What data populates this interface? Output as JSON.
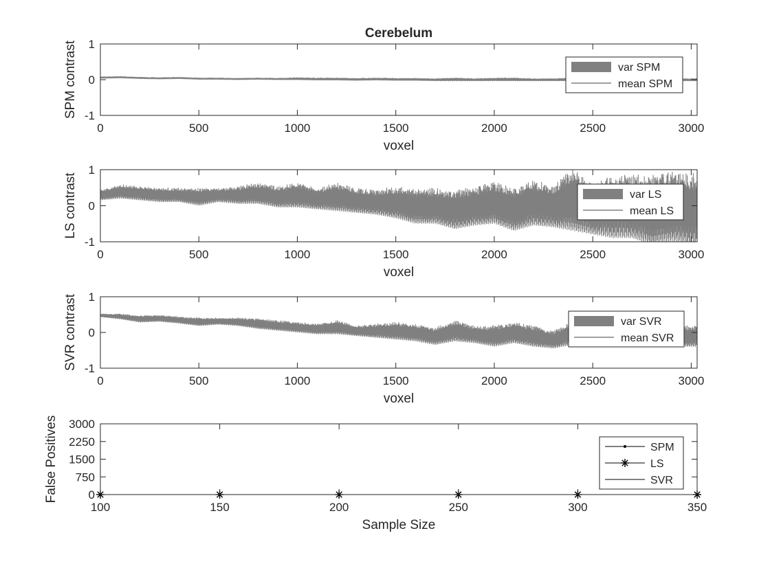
{
  "figure": {
    "title": "Cerebelum",
    "background": "#ffffff",
    "axis_color": "#262626",
    "line_color": "#808080"
  },
  "chart_data": [
    {
      "type": "area",
      "title": "Cerebelum",
      "xlabel": "voxel",
      "ylabel": "SPM contrast",
      "xlim": [
        0,
        3030
      ],
      "ylim": [
        -1,
        1
      ],
      "xticks": [
        0,
        500,
        1000,
        1500,
        2000,
        2500,
        3000
      ],
      "yticks": [
        -1,
        0,
        1
      ],
      "legend": "top-right",
      "series": [
        {
          "name": "var SPM",
          "kind": "band",
          "color": "#808080"
        },
        {
          "name": "mean SPM",
          "kind": "line",
          "color": "#808080"
        }
      ],
      "x": [
        0,
        100,
        200,
        300,
        400,
        500,
        600,
        700,
        800,
        900,
        1000,
        1100,
        1200,
        1300,
        1400,
        1500,
        1600,
        1700,
        1800,
        1900,
        2000,
        2100,
        2200,
        2300,
        2400,
        2500,
        2600,
        2700,
        2800,
        2900,
        3030
      ],
      "mean": [
        0.06,
        0.07,
        0.05,
        0.04,
        0.05,
        0.03,
        0.03,
        0.02,
        0.03,
        0.02,
        0.03,
        0.02,
        0.02,
        0.01,
        0.02,
        0.01,
        0.01,
        0.0,
        0.01,
        0.0,
        0.01,
        0.01,
        0.0,
        0.0,
        0.01,
        0.01,
        0.0,
        0.01,
        0.0,
        0.0,
        0.0
      ],
      "spread": [
        0.03,
        0.03,
        0.03,
        0.03,
        0.03,
        0.03,
        0.03,
        0.03,
        0.03,
        0.03,
        0.04,
        0.04,
        0.04,
        0.04,
        0.04,
        0.04,
        0.04,
        0.04,
        0.05,
        0.04,
        0.05,
        0.05,
        0.04,
        0.04,
        0.05,
        0.04,
        0.04,
        0.04,
        0.04,
        0.04,
        0.04
      ]
    },
    {
      "type": "area",
      "xlabel": "voxel",
      "ylabel": "LS contrast",
      "xlim": [
        0,
        3030
      ],
      "ylim": [
        -1,
        1
      ],
      "xticks": [
        0,
        500,
        1000,
        1500,
        2000,
        2500,
        3000
      ],
      "yticks": [
        -1,
        0,
        1
      ],
      "legend": "top-right",
      "series": [
        {
          "name": "var LS",
          "kind": "band",
          "color": "#808080"
        },
        {
          "name": "mean LS",
          "kind": "line",
          "color": "#808080"
        }
      ],
      "x": [
        0,
        100,
        200,
        300,
        400,
        500,
        600,
        700,
        800,
        900,
        1000,
        1100,
        1200,
        1300,
        1400,
        1500,
        1600,
        1700,
        1800,
        1900,
        2000,
        2100,
        2200,
        2300,
        2400,
        2500,
        2600,
        2700,
        2800,
        2900,
        3030
      ],
      "mean": [
        0.3,
        0.4,
        0.35,
        0.3,
        0.3,
        0.25,
        0.3,
        0.3,
        0.35,
        0.25,
        0.3,
        0.2,
        0.25,
        0.15,
        0.1,
        0.1,
        0.0,
        0.0,
        -0.1,
        0.0,
        0.1,
        -0.1,
        0.1,
        0.0,
        0.2,
        -0.1,
        0.0,
        0.0,
        -0.1,
        0.0,
        -0.1
      ],
      "spread": [
        0.15,
        0.2,
        0.2,
        0.2,
        0.2,
        0.25,
        0.2,
        0.25,
        0.3,
        0.3,
        0.35,
        0.3,
        0.4,
        0.35,
        0.35,
        0.45,
        0.5,
        0.5,
        0.55,
        0.55,
        0.6,
        0.6,
        0.65,
        0.6,
        0.9,
        0.7,
        0.9,
        0.9,
        1.0,
        1.0,
        1.0
      ]
    },
    {
      "type": "area",
      "xlabel": "voxel",
      "ylabel": "SVR contrast",
      "xlim": [
        0,
        3030
      ],
      "ylim": [
        -1,
        1
      ],
      "xticks": [
        0,
        500,
        1000,
        1500,
        2000,
        2500,
        3000
      ],
      "yticks": [
        -1,
        0,
        1
      ],
      "legend": "top-right",
      "series": [
        {
          "name": "var SVR",
          "kind": "band",
          "color": "#808080"
        },
        {
          "name": "mean SVR",
          "kind": "line",
          "color": "#808080"
        }
      ],
      "x": [
        0,
        100,
        200,
        300,
        400,
        500,
        600,
        700,
        800,
        900,
        1000,
        1100,
        1200,
        1300,
        1400,
        1500,
        1600,
        1700,
        1800,
        1900,
        2000,
        2100,
        2200,
        2300,
        2400,
        2500,
        2600,
        2700,
        2800,
        2900,
        3030
      ],
      "mean": [
        0.48,
        0.45,
        0.38,
        0.4,
        0.35,
        0.3,
        0.32,
        0.3,
        0.25,
        0.2,
        0.15,
        0.1,
        0.15,
        0.05,
        0.05,
        0.05,
        0.0,
        -0.1,
        0.05,
        -0.05,
        -0.1,
        0.0,
        -0.1,
        -0.2,
        0.0,
        -0.1,
        0.0,
        -0.05,
        -0.1,
        -0.1,
        -0.1
      ],
      "spread": [
        0.05,
        0.08,
        0.1,
        0.1,
        0.1,
        0.12,
        0.1,
        0.12,
        0.15,
        0.15,
        0.15,
        0.15,
        0.2,
        0.15,
        0.2,
        0.25,
        0.25,
        0.25,
        0.3,
        0.25,
        0.3,
        0.3,
        0.3,
        0.25,
        0.35,
        0.3,
        0.3,
        0.3,
        0.3,
        0.3,
        0.3
      ]
    },
    {
      "type": "line",
      "xlabel": "Sample Size",
      "ylabel": "False Positives",
      "xlim": [
        100,
        350
      ],
      "ylim": [
        0,
        3000
      ],
      "xticks": [
        100,
        150,
        200,
        250,
        300,
        350
      ],
      "yticks": [
        0,
        750,
        1500,
        2250,
        3000
      ],
      "legend": "top-right",
      "x": [
        100,
        150,
        200,
        250,
        300,
        350
      ],
      "series": [
        {
          "name": "SPM",
          "marker": "dot",
          "values": [
            0,
            0,
            0,
            0,
            0,
            0
          ]
        },
        {
          "name": "LS",
          "marker": "asterisk",
          "values": [
            0,
            0,
            0,
            0,
            0,
            0
          ]
        },
        {
          "name": "SVR",
          "marker": "none",
          "values": [
            0,
            0,
            0,
            0,
            0,
            0
          ]
        }
      ]
    }
  ]
}
